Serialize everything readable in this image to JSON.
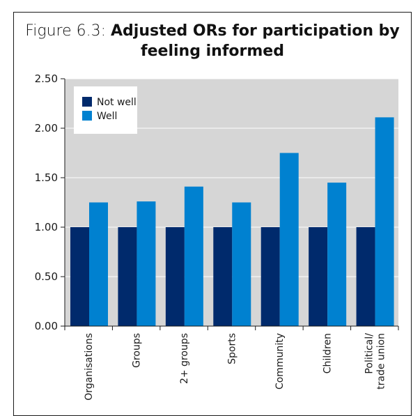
{
  "title": {
    "prefix": "Figure 6.3: ",
    "line1": "Adjusted ORs for participation by",
    "line2": "feeling informed"
  },
  "chart_data": {
    "type": "bar",
    "categories": [
      "Organisations",
      "Groups",
      "2+ groups",
      "Sports",
      "Community",
      "Children",
      "Political/ trade union"
    ],
    "category_lines": [
      [
        "Organisations"
      ],
      [
        "Groups"
      ],
      [
        "2+ groups"
      ],
      [
        "Sports"
      ],
      [
        "Community"
      ],
      [
        "Children"
      ],
      [
        "Political/",
        "trade union"
      ]
    ],
    "series": [
      {
        "name": "Not well",
        "color": "#002a6c",
        "values": [
          1.0,
          1.0,
          1.0,
          1.0,
          1.0,
          1.0,
          1.0
        ]
      },
      {
        "name": "Well",
        "color": "#0081d0",
        "values": [
          1.25,
          1.26,
          1.41,
          1.25,
          1.75,
          1.45,
          2.11
        ]
      }
    ],
    "ylim": [
      0,
      2.5
    ],
    "yticks": [
      "0.00",
      "0.50",
      "1.00",
      "1.50",
      "2.00",
      "2.50"
    ],
    "plot_background": "#d6d6d6",
    "legend_position": "top-left",
    "grid": true
  }
}
